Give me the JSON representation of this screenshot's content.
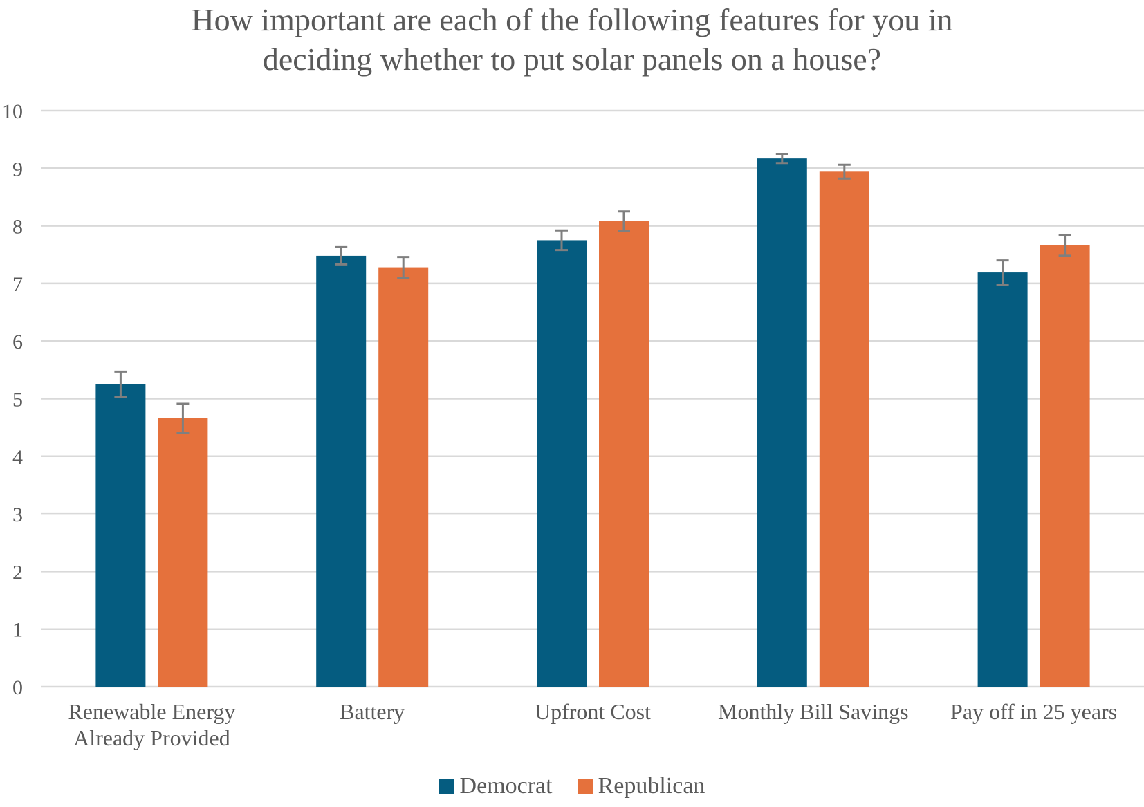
{
  "chart_data": {
    "type": "bar",
    "title_lines": [
      "How important are each of the following features for you in",
      "deciding whether to put solar panels on a house?"
    ],
    "categories": [
      [
        "Renewable Energy",
        "Already Provided"
      ],
      [
        "Battery"
      ],
      [
        "Upfront Cost"
      ],
      [
        "Monthly Bill Savings"
      ],
      [
        "Pay off in 25 years"
      ]
    ],
    "series": [
      {
        "name": "Democrat",
        "color": "#055c80",
        "values": [
          5.25,
          7.48,
          7.75,
          9.17,
          7.19
        ],
        "errors": [
          0.22,
          0.15,
          0.17,
          0.08,
          0.21
        ]
      },
      {
        "name": "Republican",
        "color": "#e5713c",
        "values": [
          4.66,
          7.28,
          8.08,
          8.94,
          7.66
        ],
        "errors": [
          0.25,
          0.18,
          0.17,
          0.12,
          0.18
        ]
      }
    ],
    "ylim": [
      0,
      10
    ],
    "yticks": [
      "0",
      "1",
      "2",
      "3",
      "4",
      "5",
      "6",
      "7",
      "8",
      "9",
      "10"
    ],
    "grid": true,
    "legend_position": "bottom"
  }
}
